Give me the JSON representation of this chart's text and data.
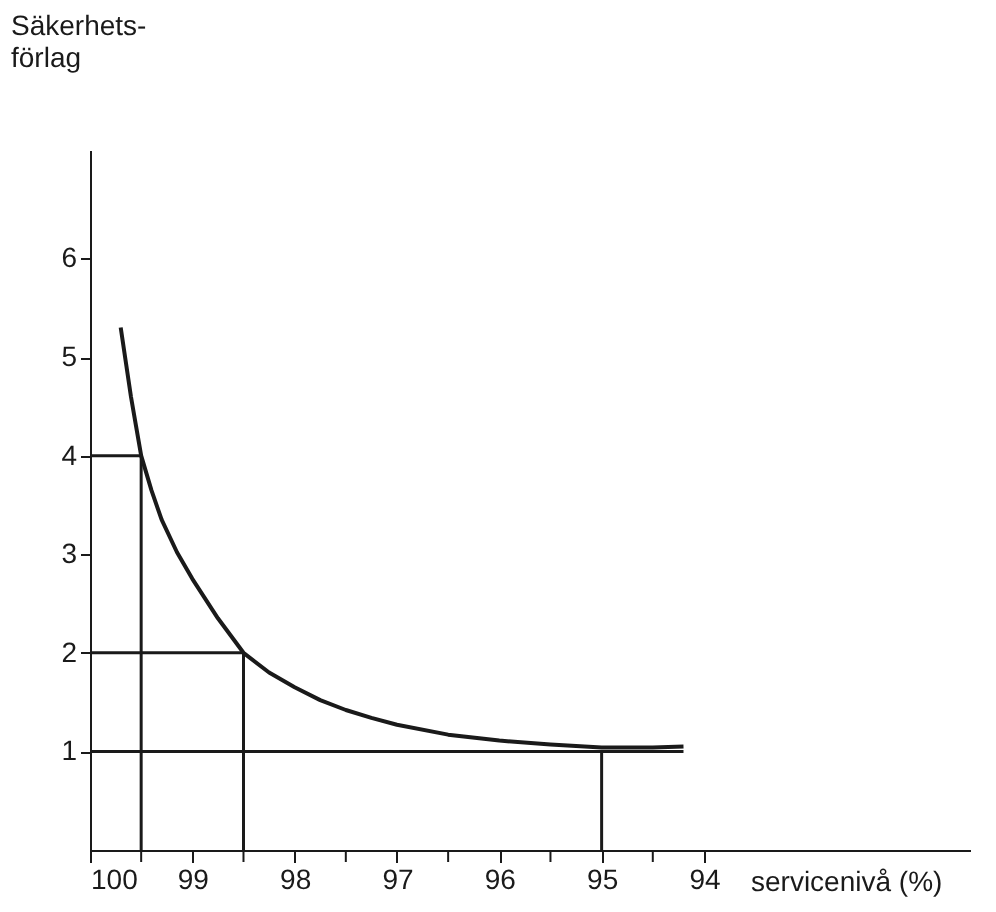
{
  "chart_data": {
    "type": "line",
    "xlabel": "servicenivå (%)",
    "ylabel": "Säkerhets-\nförlag",
    "series": [
      {
        "color": "#1a1a1a",
        "x": [
          99.7,
          99.65,
          99.6,
          99.55,
          99.5,
          99.4,
          99.3,
          99.15,
          99.0,
          98.75,
          98.5,
          98.25,
          98.0,
          97.75,
          97.5,
          97.25,
          97.0,
          96.5,
          96.0,
          95.5,
          95.0,
          94.5,
          94.2
        ],
        "values": [
          5.3,
          4.95,
          4.6,
          4.3,
          4.0,
          3.65,
          3.35,
          3.02,
          2.75,
          2.35,
          2.0,
          1.8,
          1.65,
          1.52,
          1.42,
          1.34,
          1.27,
          1.17,
          1.11,
          1.07,
          1.04,
          1.04,
          1.05
        ]
      },
      {
        "color": "#1a1a1a",
        "x": [
          100,
          99.5
        ],
        "values": [
          4,
          4
        ]
      },
      {
        "color": "#1a1a1a",
        "x": [
          99.5,
          99.5
        ],
        "values": [
          0,
          4
        ]
      },
      {
        "color": "#1a1a1a",
        "x": [
          100,
          98.5
        ],
        "values": [
          2,
          2
        ]
      },
      {
        "color": "#1a1a1a",
        "x": [
          98.5,
          98.5
        ],
        "values": [
          0,
          2
        ]
      },
      {
        "color": "#1a1a1a",
        "x": [
          100,
          94.2
        ],
        "values": [
          1,
          1
        ]
      },
      {
        "color": "#1a1a1a",
        "x": [
          95,
          95
        ],
        "values": [
          0,
          1
        ]
      }
    ],
    "xlim": [
      100,
      91.4
    ],
    "ylim": [
      0,
      7.1
    ],
    "xticks": [
      100,
      {
        "value": 99.5,
        "label": null
      },
      99,
      {
        "value": 98.5,
        "label": null
      },
      98,
      {
        "value": 97.5,
        "label": null
      },
      97,
      {
        "value": 96.5,
        "label": null
      },
      96,
      {
        "value": 95.5,
        "label": null
      },
      95,
      {
        "value": 94.5,
        "label": null
      },
      94
    ],
    "yticks": [
      1,
      2,
      3,
      4,
      5,
      6
    ],
    "grid": false,
    "marker": "none",
    "line_style": "solid"
  }
}
